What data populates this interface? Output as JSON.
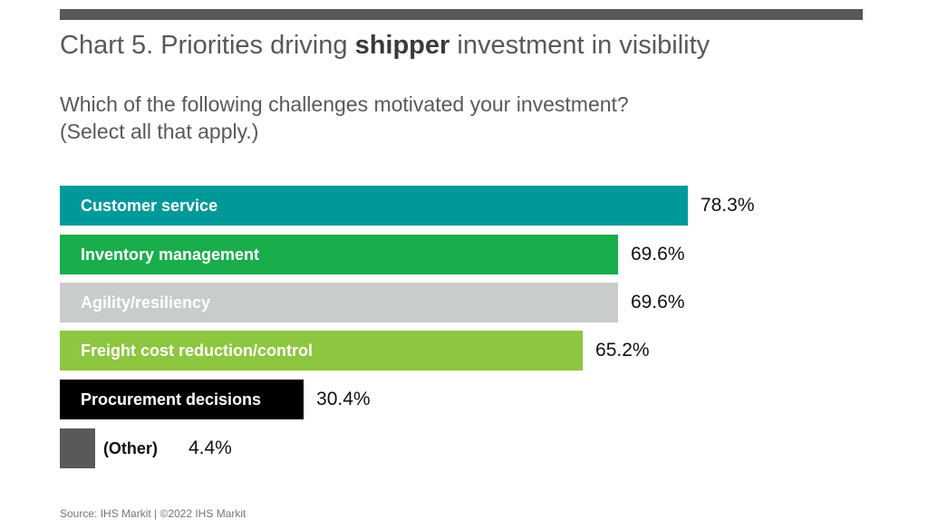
{
  "title_pre": "Chart 5. Priorities driving ",
  "title_bold": "shipper",
  "title_post": " investment in visibility",
  "subtitle_line1": "Which of the following challenges motivated your investment?",
  "subtitle_line2": "(Select all that apply.)",
  "source": "Source: IHS Markit  |  ©2022 IHS Markit",
  "chart_data": {
    "type": "bar",
    "orientation": "horizontal",
    "categories": [
      "Customer service",
      "Inventory management",
      "Agility/resiliency",
      "Freight cost reduction/control",
      "Procurement decisions",
      "(Other)"
    ],
    "values": [
      78.3,
      69.6,
      69.6,
      65.2,
      30.4,
      4.4
    ],
    "value_labels": [
      "78.3%",
      "69.6%",
      "69.6%",
      "65.2%",
      "30.4%",
      "4.4%"
    ],
    "colors": [
      "#00999a",
      "#1aad4b",
      "#c8cccb",
      "#8dc63f",
      "#000000",
      "#58595b"
    ],
    "label_outside": [
      false,
      false,
      false,
      false,
      false,
      true
    ],
    "xlim": [
      0,
      100
    ],
    "grid": false
  }
}
